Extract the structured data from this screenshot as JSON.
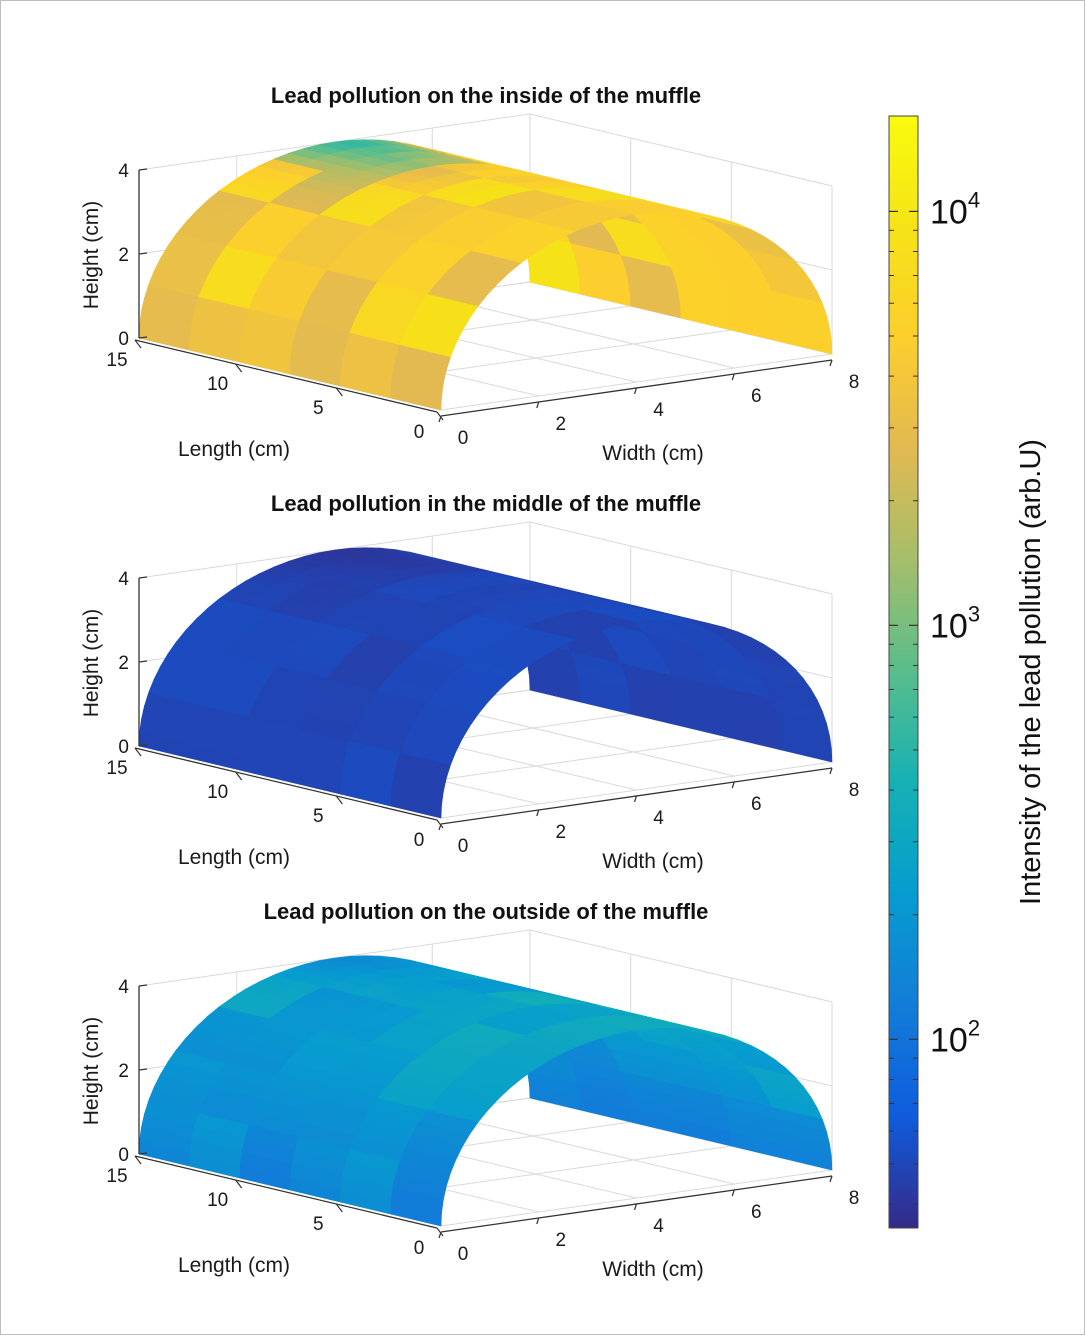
{
  "chart_data": [
    {
      "type": "surface",
      "title": "Lead pollution on the inside of the muffle",
      "xlabel": "Width (cm)",
      "ylabel": "Length (cm)",
      "zlabel": "Height (cm)",
      "x_ticks": [
        "0",
        "2",
        "4",
        "6",
        "8"
      ],
      "y_ticks": [
        "0",
        "5",
        "10",
        "15"
      ],
      "z_ticks": [
        "0",
        "2",
        "4"
      ],
      "xlim": [
        0,
        8
      ],
      "ylim": [
        0,
        15
      ],
      "zlim": [
        0,
        4
      ],
      "shape": "half-cylinder arch, radius 4 cm, spanning the full length",
      "intensity_range": [
        300,
        10000
      ],
      "typical_intensity": 5000,
      "grid": true
    },
    {
      "type": "surface",
      "title": "Lead pollution in the middle of the muffle",
      "xlabel": "Width (cm)",
      "ylabel": "Length (cm)",
      "zlabel": "Height (cm)",
      "x_ticks": [
        "0",
        "2",
        "4",
        "6",
        "8"
      ],
      "y_ticks": [
        "0",
        "5",
        "10",
        "15"
      ],
      "z_ticks": [
        "0",
        "2",
        "4"
      ],
      "xlim": [
        0,
        8
      ],
      "ylim": [
        0,
        15
      ],
      "zlim": [
        0,
        4
      ],
      "shape": "half-cylinder arch, radius 4 cm, spanning the full length",
      "intensity_range": [
        40,
        60
      ],
      "typical_intensity": 50,
      "grid": true
    },
    {
      "type": "surface",
      "title": "Lead pollution on the outside of the muffle",
      "xlabel": "Width (cm)",
      "ylabel": "Length (cm)",
      "zlabel": "Height (cm)",
      "x_ticks": [
        "0",
        "2",
        "4",
        "6",
        "8"
      ],
      "y_ticks": [
        "0",
        "5",
        "10",
        "15"
      ],
      "z_ticks": [
        "0",
        "2",
        "4"
      ],
      "xlim": [
        0,
        8
      ],
      "ylim": [
        0,
        15
      ],
      "zlim": [
        0,
        4
      ],
      "shape": "half-cylinder arch, radius 4 cm, spanning the full length",
      "intensity_range": [
        120,
        500
      ],
      "typical_intensity": 300,
      "grid": true
    }
  ],
  "colorbar": {
    "label": "Intensity of the lead pollution (arb.U)",
    "scale": "log",
    "range": [
      35,
      17000
    ],
    "colormap": "parula",
    "ticks": [
      {
        "base": "10",
        "exp": "2",
        "value": 100
      },
      {
        "base": "10",
        "exp": "3",
        "value": 1000
      },
      {
        "base": "10",
        "exp": "4",
        "value": 10000
      }
    ]
  }
}
